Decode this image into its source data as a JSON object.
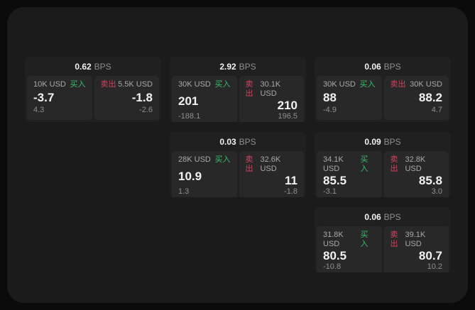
{
  "labels": {
    "buy": "买入",
    "sell": "卖出",
    "bps_unit": "BPS"
  },
  "colors": {
    "background": "#0b0b0b",
    "panel": "#1b1b1b",
    "card": "#202020",
    "tile": "#282828",
    "buy": "#3dba6f",
    "sell": "#d5405f"
  },
  "cards": [
    {
      "bps": "0.62",
      "buy": {
        "size": "10K USD",
        "value": "-3.7",
        "delta": "4.3"
      },
      "sell": {
        "size": "5.5K USD",
        "value": "-1.8",
        "delta": "-2.6"
      }
    },
    {
      "bps": "2.92",
      "buy": {
        "size": "30K USD",
        "value": "201",
        "delta": "-188.1"
      },
      "sell": {
        "size": "30.1K USD",
        "value": "210",
        "delta": "196.5"
      }
    },
    {
      "bps": "0.06",
      "buy": {
        "size": "30K USD",
        "value": "88",
        "delta": "-4.9"
      },
      "sell": {
        "size": "30K USD",
        "value": "88.2",
        "delta": "4.7"
      }
    },
    {
      "bps": "0.03",
      "buy": {
        "size": "28K USD",
        "value": "10.9",
        "delta": "1.3"
      },
      "sell": {
        "size": "32.6K USD",
        "value": "11",
        "delta": "-1.8"
      }
    },
    {
      "bps": "0.09",
      "buy": {
        "size": "34.1K USD",
        "value": "85.5",
        "delta": "-3.1"
      },
      "sell": {
        "size": "32.8K USD",
        "value": "85.8",
        "delta": "3.0"
      }
    },
    {
      "bps": "0.06",
      "buy": {
        "size": "31.8K USD",
        "value": "80.5",
        "delta": "-10.8"
      },
      "sell": {
        "size": "39.1K USD",
        "value": "80.7",
        "delta": "10.2"
      }
    }
  ]
}
